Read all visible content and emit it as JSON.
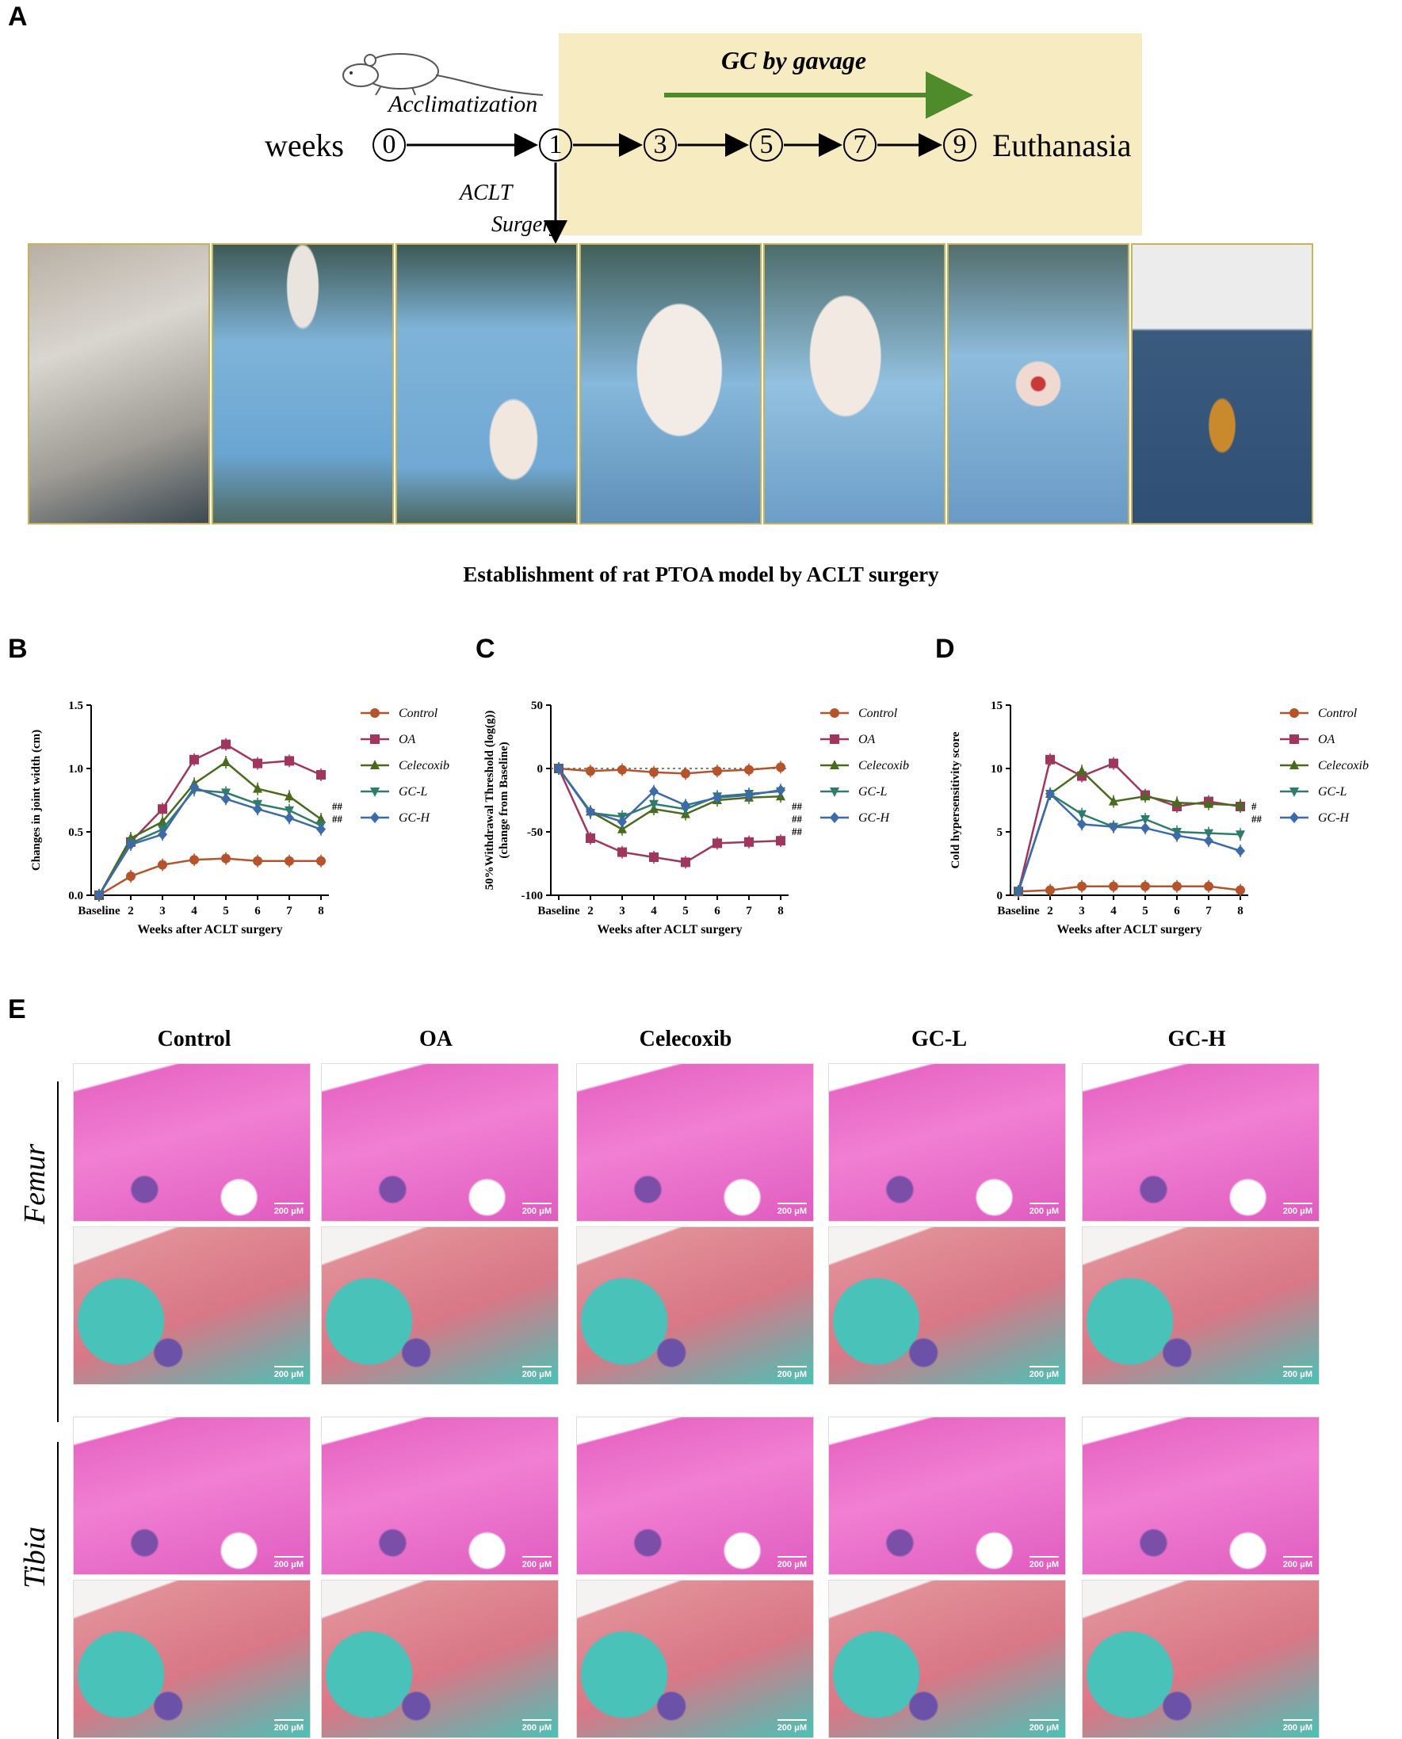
{
  "panels": {
    "a": "A",
    "b": "B",
    "c": "C",
    "d": "D",
    "e": "E"
  },
  "timeline": {
    "acclimatization": "Acclimatization",
    "weeks_label": "weeks",
    "week_points": [
      "0",
      "1",
      "3",
      "5",
      "7",
      "9"
    ],
    "end_label": "Euthanasia",
    "gavage_label": "GC by gavage",
    "surgery_label_1": "ACLT",
    "surgery_label_2": "Surgery"
  },
  "caption": "Establishment of rat PTOA model by ACLT surgery",
  "colors": {
    "Control": "#b5532b",
    "OA": "#a0365e",
    "Celecoxib": "#4a6b1e",
    "GC-L": "#2f7c6a",
    "GC-H": "#3d6aa8",
    "banner": "#f7ebc2",
    "arrow": "#4f8a2b"
  },
  "legend_labels": [
    "Control",
    "OA",
    "Celecoxib",
    "GC-L",
    "GC-H"
  ],
  "chart_data": [
    {
      "type": "line",
      "xlabel": "Weeks after ACLT surgery",
      "ylabel": "Changes in joint width (cm)",
      "categories": [
        "Baseline",
        "2",
        "3",
        "4",
        "5",
        "6",
        "7",
        "8"
      ],
      "ylim": [
        0,
        1.5
      ],
      "yticks": [
        "0.0",
        "0.5",
        "1.0",
        "1.5"
      ],
      "series": [
        {
          "name": "Control",
          "values": [
            0.0,
            0.15,
            0.24,
            0.28,
            0.29,
            0.27,
            0.27,
            0.27
          ]
        },
        {
          "name": "OA",
          "values": [
            0.0,
            0.42,
            0.68,
            1.07,
            1.19,
            1.04,
            1.06,
            0.95
          ]
        },
        {
          "name": "Celecoxib",
          "values": [
            0.0,
            0.45,
            0.58,
            0.88,
            1.05,
            0.84,
            0.78,
            0.6
          ]
        },
        {
          "name": "GC-L",
          "values": [
            0.0,
            0.41,
            0.52,
            0.83,
            0.81,
            0.72,
            0.67,
            0.55
          ]
        },
        {
          "name": "GC-H",
          "values": [
            0.0,
            0.4,
            0.48,
            0.85,
            0.76,
            0.68,
            0.61,
            0.52
          ]
        }
      ],
      "annotations": [
        "##",
        "##"
      ]
    },
    {
      "type": "line",
      "xlabel": "Weeks after ACLT surgery",
      "ylabel": "50%Withdrawal Threshold (log(g))",
      "ylabel2": "(change from Baseline)",
      "categories": [
        "Baseline",
        "2",
        "3",
        "4",
        "5",
        "6",
        "7",
        "8"
      ],
      "ylim": [
        -100,
        50
      ],
      "yticks": [
        "-100",
        "-50",
        "0",
        "50"
      ],
      "series": [
        {
          "name": "Control",
          "values": [
            0,
            -2,
            -1,
            -3,
            -4,
            -2,
            -1,
            1
          ]
        },
        {
          "name": "OA",
          "values": [
            0,
            -55,
            -66,
            -70,
            -74,
            -59,
            -58,
            -57
          ]
        },
        {
          "name": "Celecoxib",
          "values": [
            0,
            -34,
            -48,
            -32,
            -36,
            -25,
            -23,
            -22
          ]
        },
        {
          "name": "GC-L",
          "values": [
            0,
            -35,
            -38,
            -28,
            -32,
            -22,
            -20,
            -18
          ]
        },
        {
          "name": "GC-H",
          "values": [
            0,
            -34,
            -42,
            -18,
            -29,
            -23,
            -21,
            -17
          ]
        }
      ],
      "annotations": [
        "##",
        "##",
        "##"
      ]
    },
    {
      "type": "line",
      "xlabel": "Weeks after ACLT surgery",
      "ylabel": "Cold hypersensitivity score",
      "categories": [
        "Baseline",
        "2",
        "3",
        "4",
        "5",
        "6",
        "7",
        "8"
      ],
      "ylim": [
        0,
        15
      ],
      "yticks": [
        "0",
        "5",
        "10",
        "15"
      ],
      "series": [
        {
          "name": "Control",
          "values": [
            0.3,
            0.4,
            0.7,
            0.7,
            0.7,
            0.7,
            0.7,
            0.4
          ]
        },
        {
          "name": "OA",
          "values": [
            0.3,
            10.7,
            9.4,
            10.4,
            7.9,
            7.0,
            7.4,
            7.0
          ]
        },
        {
          "name": "Celecoxib",
          "values": [
            0.3,
            8.0,
            9.8,
            7.4,
            7.8,
            7.3,
            7.2,
            7.1
          ]
        },
        {
          "name": "GC-L",
          "values": [
            0.3,
            8.0,
            6.4,
            5.4,
            6.0,
            5.0,
            4.9,
            4.8
          ]
        },
        {
          "name": "GC-H",
          "values": [
            0.3,
            8.0,
            5.6,
            5.4,
            5.3,
            4.7,
            4.3,
            3.5
          ]
        }
      ],
      "annotations": [
        "#",
        "##"
      ]
    }
  ],
  "histology": {
    "columns": [
      "Control",
      "OA",
      "Celecoxib",
      "GC-L",
      "GC-H"
    ],
    "rows": [
      "Femur",
      "Tibia"
    ],
    "scale_label": "200 μM"
  }
}
